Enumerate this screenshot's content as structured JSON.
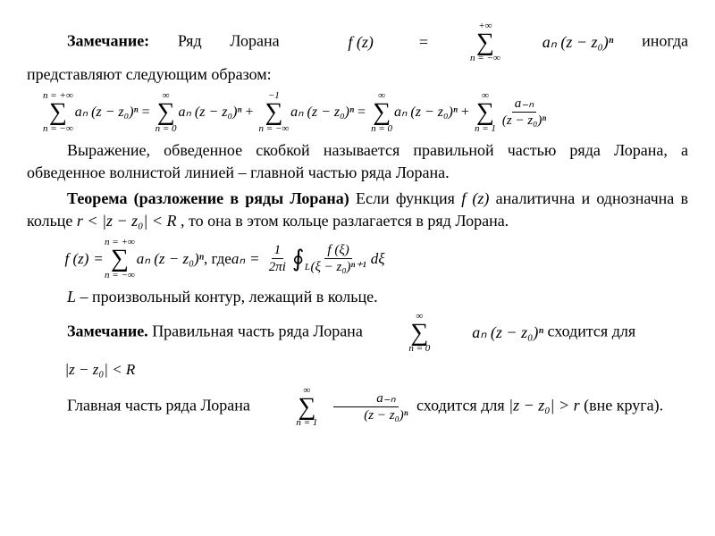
{
  "p1": {
    "lead_bold": "Замечание:",
    "t1": " Ряд Лорана ",
    "t2": " иногда представляют следующим образом:"
  },
  "laurent_def": {
    "lhs": "f (z)",
    "eq": "=",
    "sum_top": "+∞",
    "sum_bot": "n = −∞",
    "term": "aₙ (z − z₀)ⁿ"
  },
  "split": {
    "s1_top": "n = +∞",
    "s1_bot": "n = −∞",
    "s1_term": "aₙ (z − z₀)ⁿ",
    "eq1": "=",
    "s2_top": "∞",
    "s2_bot": "n = 0",
    "s2_term": "aₙ (z − z₀)ⁿ",
    "plus1": "+",
    "s3_top": "−1",
    "s3_bot": "n = −∞",
    "s3_term": "aₙ (z − z₀)ⁿ",
    "eq2": "=",
    "s4_top": "∞",
    "s4_bot": "n = 0",
    "s4_term": "aₙ (z − z₀)ⁿ",
    "plus2": "+",
    "s5_top": "∞",
    "s5_bot": "n = 1",
    "s5_num": "a₋ₙ",
    "s5_den": "(z − z₀)ⁿ"
  },
  "p2": "Выражение, обведенное скобкой называется правильной частью ряда Лорана, а обведенное волнистой линией – главной частью ряда Лорана.",
  "p3": {
    "lead_bold": "Теорема (разложение в ряды Лорана) ",
    "t1": "Если функция ",
    "fz": "f (z)",
    "t2": " аналитична и однозначна в кольце ",
    "ring": "r < |z − z₀| < R",
    "t3": ", то она в этом кольце разлагается в ряд Лорана."
  },
  "coef": {
    "lhs": "f (z)",
    "eq": "=",
    "sum_top": "n = +∞",
    "sum_bot": "n = −∞",
    "term": "aₙ (z − z₀)ⁿ",
    "where": ", где ",
    "an": "aₙ",
    "eq2": "=",
    "f1_num": "1",
    "f1_den": "2πi",
    "oint_sub": "L",
    "f2_num": "f (ξ)",
    "f2_den": "(ξ − z₀)ⁿ⁺¹",
    "dxi": "dξ"
  },
  "p4": {
    "L": "L",
    "t": " – произвольный контур, лежащий в кольце."
  },
  "p5": {
    "lead_bold": "Замечание.",
    "t1": " Правильная часть ряда Лорана ",
    "sum_top": "∞",
    "sum_bot": "n = 0",
    "term": "aₙ (z − z₀)ⁿ",
    "t2": " сходится для"
  },
  "cond1": "|z − z₀| < R",
  "p6": {
    "t1": "Главная часть ряда Лорана ",
    "sum_top": "∞",
    "sum_bot": "n = 1",
    "num": "a₋ₙ",
    "den": "(z − z₀)ⁿ",
    "t2": " сходится для ",
    "cond": "|z − z₀| > r",
    "t3": " (вне круга)."
  }
}
